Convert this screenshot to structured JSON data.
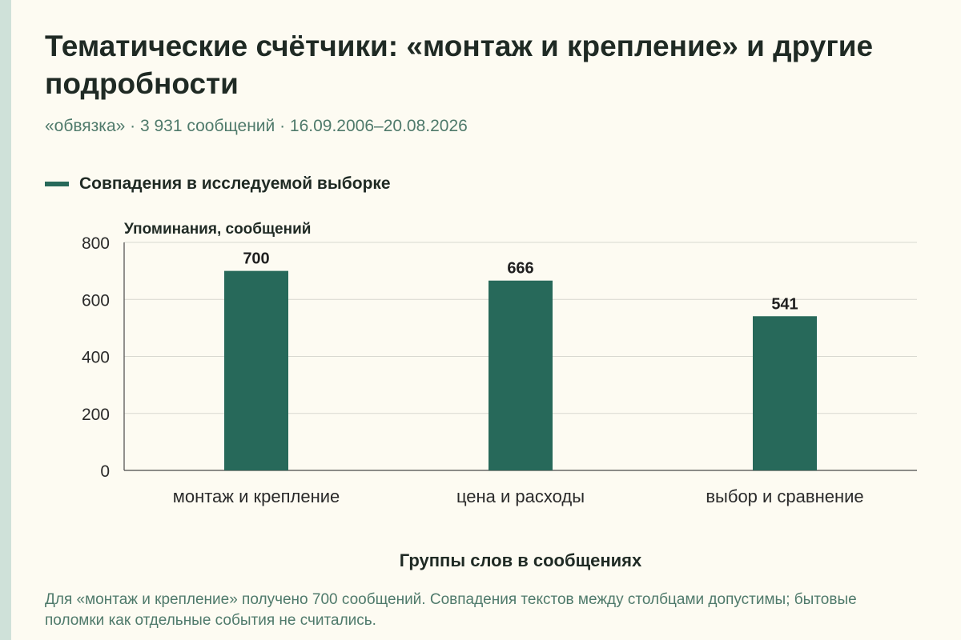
{
  "title": "Тематические счётчики: «монтаж и крепление» и другие подробности",
  "subtitle": "«обвязка» · 3 931 сообщений · 16.09.2006–20.08.2026",
  "footnote": "Для «монтаж и крепление» получено 700 сообщений. Совпадения текстов между столбцами допустимы; бытовые поломки как отдельные события не считались.",
  "colors": {
    "bar": "#27695a",
    "subtitle": "#4f7a6b",
    "background": "#fdfbf2",
    "grid": "#d8d8d0"
  },
  "chart_data": {
    "type": "bar",
    "categories": [
      "монтаж и крепление",
      "цена и расходы",
      "выбор и сравнение"
    ],
    "series": [
      {
        "name": "Совпадения в исследуемой выборке",
        "values": [
          700,
          666,
          541
        ]
      }
    ],
    "data_labels": [
      "700",
      "666",
      "541"
    ],
    "xlabel": "Группы слов в сообщениях",
    "ylabel": "Упоминания, сообщений",
    "ylim": [
      0,
      800
    ],
    "yticks": [
      0,
      200,
      400,
      600,
      800
    ],
    "grid": true,
    "legend": "top-left"
  }
}
